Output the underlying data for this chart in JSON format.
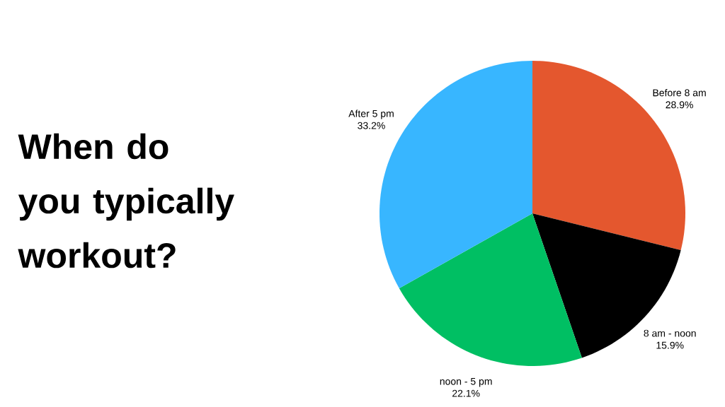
{
  "chart_data": {
    "type": "pie",
    "title": "When do you typically workout?",
    "categories": [
      "Before 8 am",
      "8 am - noon",
      "noon - 5 pm",
      "After 5 pm"
    ],
    "values": [
      28.9,
      15.9,
      22.1,
      33.2
    ],
    "colors": [
      "#e4572e",
      "#000000",
      "#00bf63",
      "#38b6ff"
    ],
    "value_labels": [
      "28.9%",
      "15.9%",
      "22.1%",
      "33.2%"
    ]
  }
}
